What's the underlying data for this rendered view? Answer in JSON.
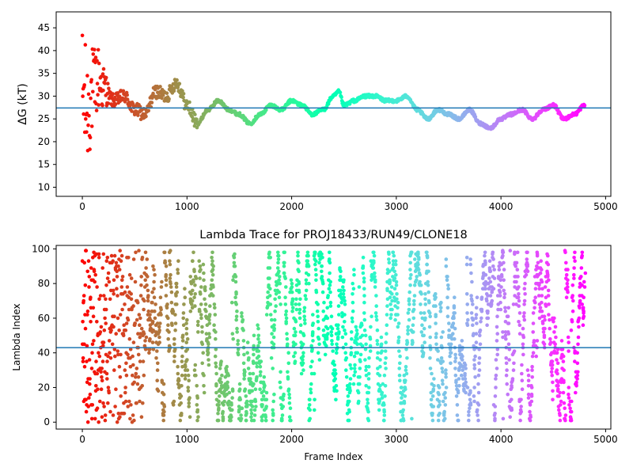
{
  "chart_data": [
    {
      "type": "scatter",
      "title": "",
      "xlabel": "",
      "ylabel": "ΔG (kT)",
      "xlim": [
        -250,
        5050
      ],
      "ylim": [
        8,
        48.5
      ],
      "xticks": [
        0,
        1000,
        2000,
        3000,
        4000,
        5000
      ],
      "yticks": [
        10,
        15,
        20,
        25,
        30,
        35,
        40,
        45
      ],
      "hline": 27.4,
      "hline_color": "#1f77b4",
      "colormap": "rainbow",
      "frames": 4800,
      "series_description": "Free-energy estimate per frame: noisy 10–45 in the first ~250 frames, converging near 27–31 by frame ~1000, then slow oscillation between ~23 and ~31 through frame 4800",
      "keypoints": [
        [
          0,
          30
        ],
        [
          50,
          27
        ],
        [
          100,
          31
        ],
        [
          150,
          34
        ],
        [
          200,
          32
        ],
        [
          300,
          29
        ],
        [
          400,
          30
        ],
        [
          500,
          27
        ],
        [
          600,
          26
        ],
        [
          700,
          31
        ],
        [
          800,
          30
        ],
        [
          900,
          33
        ],
        [
          1000,
          28
        ],
        [
          1100,
          24
        ],
        [
          1200,
          27
        ],
        [
          1300,
          29
        ],
        [
          1400,
          27
        ],
        [
          1500,
          26
        ],
        [
          1600,
          24
        ],
        [
          1700,
          26
        ],
        [
          1800,
          28
        ],
        [
          1900,
          27
        ],
        [
          2000,
          29
        ],
        [
          2100,
          28
        ],
        [
          2200,
          26
        ],
        [
          2300,
          27
        ],
        [
          2400,
          30
        ],
        [
          2450,
          31
        ],
        [
          2500,
          28
        ],
        [
          2600,
          29
        ],
        [
          2700,
          30
        ],
        [
          2800,
          30
        ],
        [
          2900,
          29
        ],
        [
          3000,
          29
        ],
        [
          3100,
          30
        ],
        [
          3200,
          27
        ],
        [
          3300,
          25
        ],
        [
          3400,
          27
        ],
        [
          3500,
          26
        ],
        [
          3600,
          25
        ],
        [
          3700,
          27
        ],
        [
          3800,
          24
        ],
        [
          3900,
          23
        ],
        [
          4000,
          25
        ],
        [
          4100,
          26
        ],
        [
          4200,
          27
        ],
        [
          4300,
          25
        ],
        [
          4400,
          27
        ],
        [
          4500,
          28
        ],
        [
          4600,
          25
        ],
        [
          4700,
          26
        ],
        [
          4800,
          28
        ]
      ]
    },
    {
      "type": "scatter",
      "title": "Lambda Trace for PROJ18433/RUN49/CLONE18",
      "xlabel": "Frame Index",
      "ylabel": "Lambda Index",
      "xlim": [
        -250,
        5050
      ],
      "ylim": [
        -4,
        102
      ],
      "xticks": [
        0,
        1000,
        2000,
        3000,
        4000,
        5000
      ],
      "yticks": [
        0,
        20,
        40,
        60,
        80,
        100
      ],
      "hline": 43,
      "hline_color": "#1f77b4",
      "colormap": "rainbow",
      "frames": 4800,
      "series_description": "Lambda index (0–99) per frame; early frames sample all lambdas densely, later frames show vertical sweeps across the full lambda range"
    }
  ]
}
